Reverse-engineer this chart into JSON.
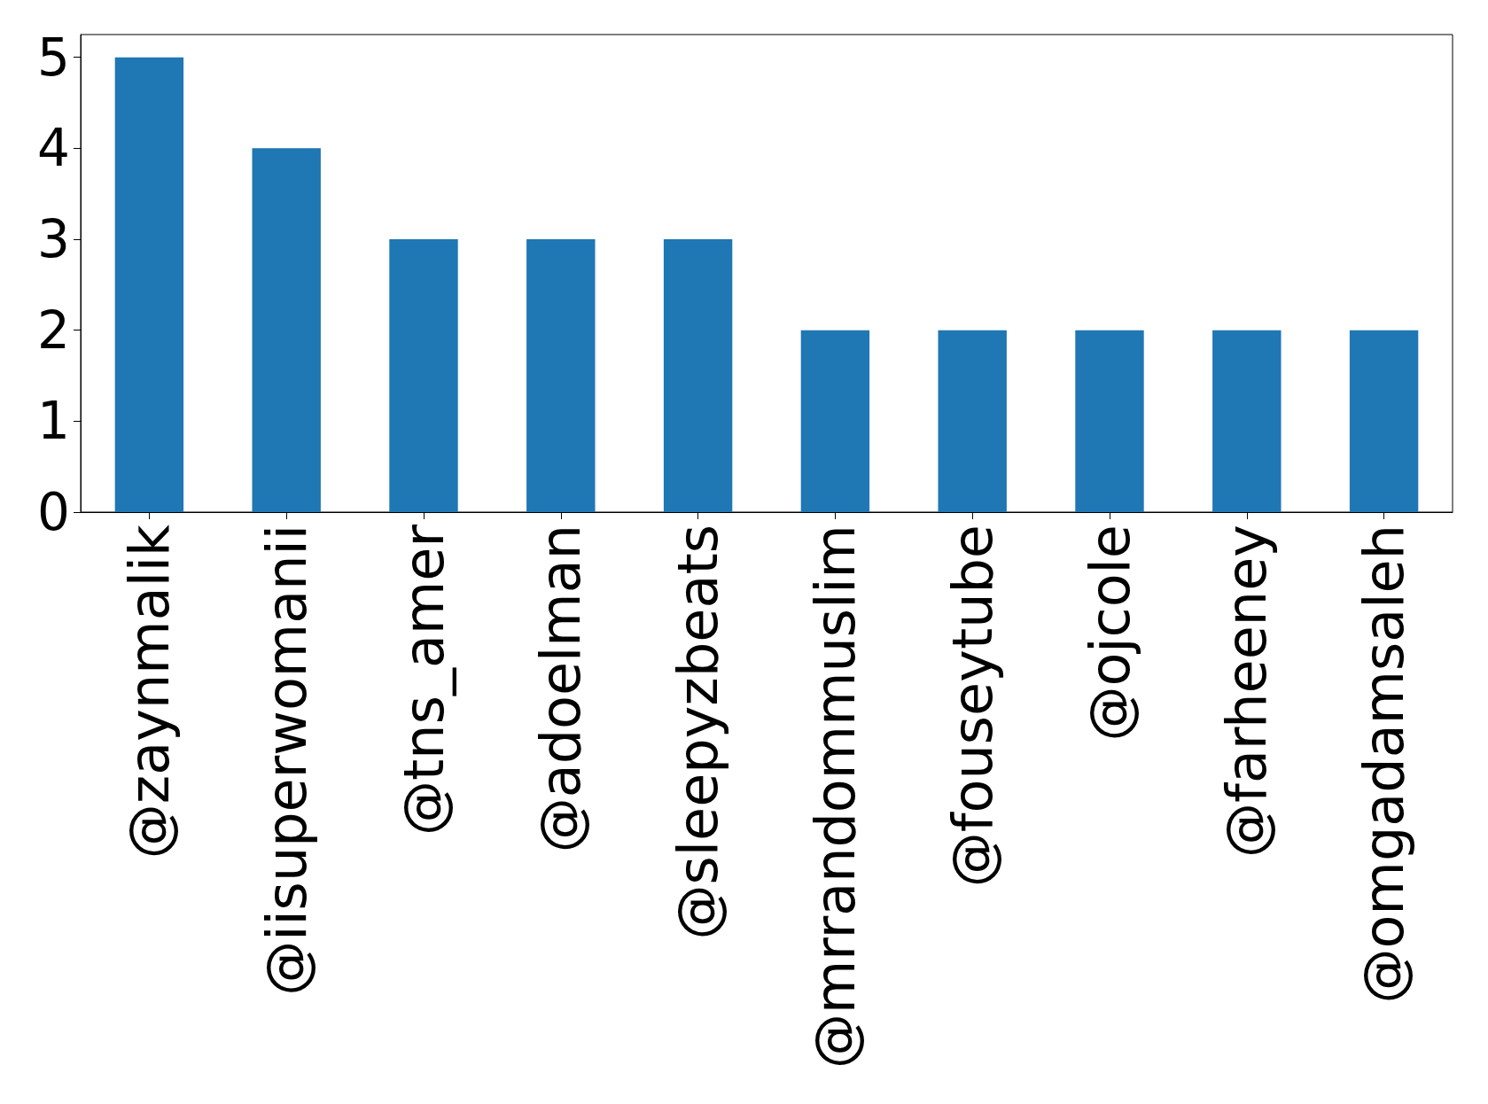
{
  "chart_data": {
    "type": "bar",
    "categories": [
      "@zaynmalik",
      "@iisuperwomanii",
      "@tns_amer",
      "@adoelman",
      "@sleepyzbeats",
      "@mrrandommuslim",
      "@fouseytube",
      "@ojcole",
      "@farheeney",
      "@omgadamsaleh"
    ],
    "values": [
      5,
      4,
      3,
      3,
      3,
      2,
      2,
      2,
      2,
      2
    ],
    "color": "#1f77b4",
    "ylim": [
      0,
      5.25
    ],
    "yticks": [
      0,
      1,
      2,
      3,
      4,
      5
    ],
    "grid": false
  }
}
